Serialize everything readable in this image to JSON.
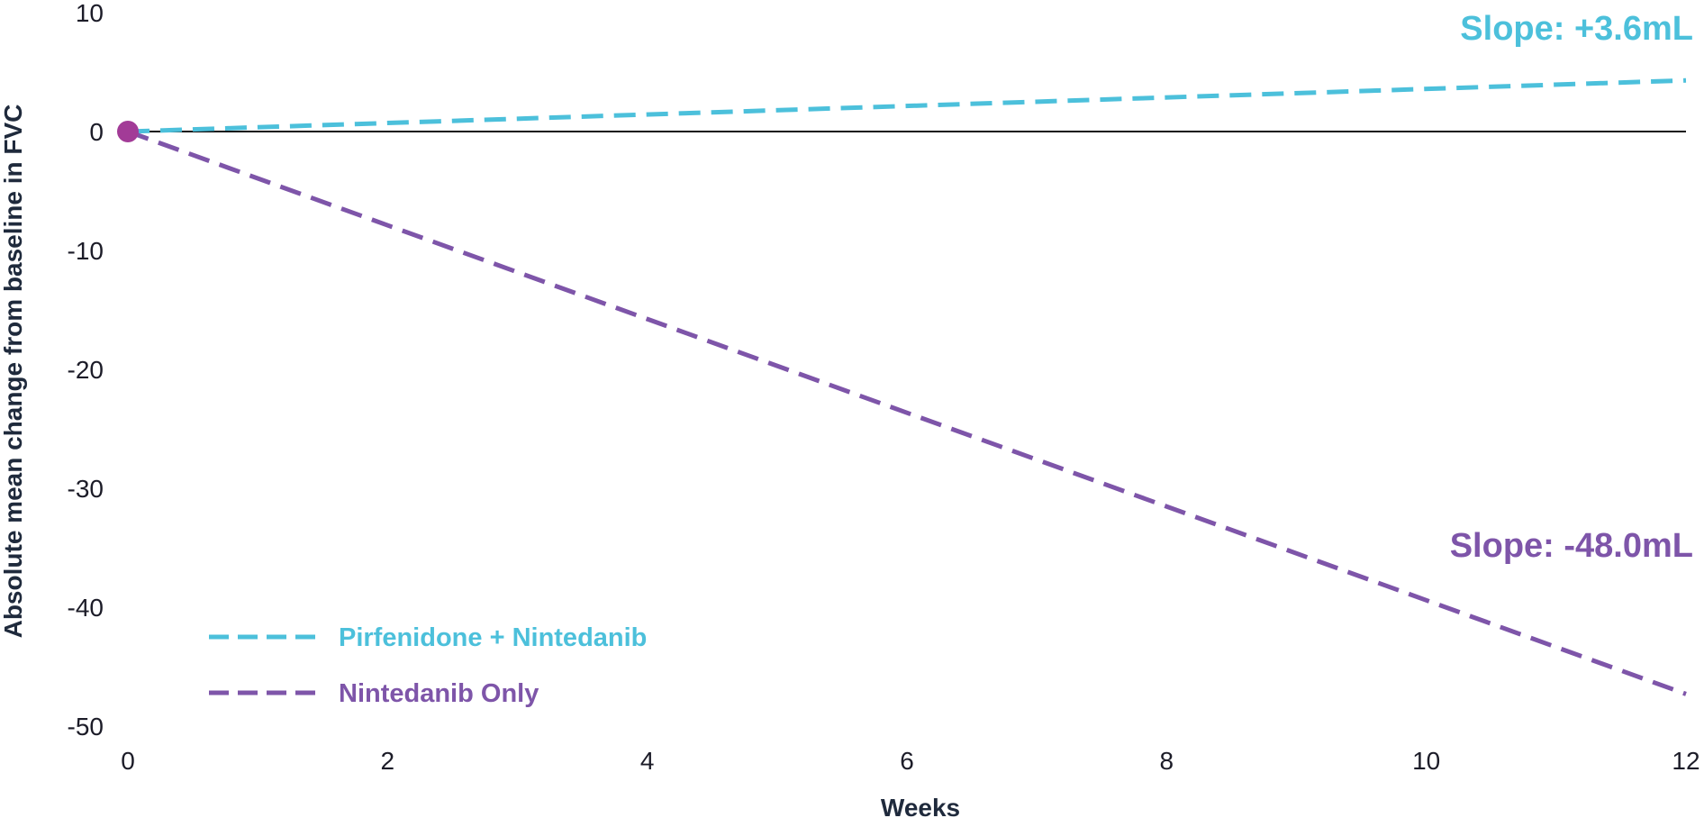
{
  "chart_data": {
    "type": "line",
    "title": "",
    "xlabel": "Weeks",
    "ylabel": "Absolute mean change from baseline in FVC",
    "xlim": [
      0,
      12
    ],
    "ylim": [
      -50,
      10
    ],
    "x_ticks": [
      0,
      2,
      4,
      6,
      8,
      10,
      12
    ],
    "y_ticks": [
      10,
      0,
      -10,
      -20,
      -30,
      -40,
      -50
    ],
    "grid": false,
    "zero_line": true,
    "legend_position": "bottom-left",
    "baseline_marker": {
      "x": 0,
      "y": 0,
      "color": "#A23B97"
    },
    "series": [
      {
        "name": "Pirfenidone + Nintedanib",
        "color": "#4CC0DB",
        "dashed": true,
        "x": [
          0,
          12
        ],
        "y": [
          0,
          4.3
        ],
        "annotation": "Slope: +3.6mL"
      },
      {
        "name": "Nintedanib Only",
        "color": "#7E55A9",
        "dashed": true,
        "x": [
          0,
          12
        ],
        "y": [
          0,
          -47.3
        ],
        "annotation": "Slope: -48.0mL"
      }
    ]
  }
}
